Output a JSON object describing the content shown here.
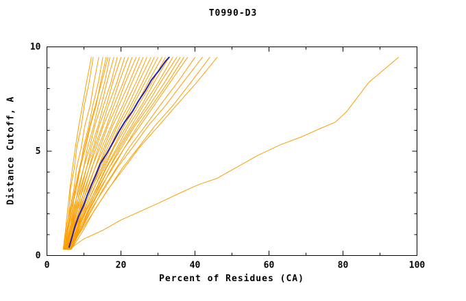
{
  "chart_data": {
    "type": "line",
    "title": "T0990-D3",
    "xlabel": "Percent of Residues (CA)",
    "ylabel": "Distance Cutoff, A",
    "xlim": [
      0,
      100
    ],
    "ylim": [
      0,
      10
    ],
    "x_ticks": [
      0,
      20,
      40,
      60,
      80,
      100
    ],
    "x_minor_ticks": [
      10,
      30,
      50,
      70,
      90
    ],
    "y_ticks": [
      0,
      5,
      10
    ],
    "y_minor_ticks": [
      1,
      2,
      3,
      4,
      6,
      7,
      8,
      9
    ],
    "grid": false,
    "legend": "none",
    "colors": {
      "models": "#ff9d00",
      "highlight": "#2222b2",
      "axis": "#000000",
      "text": "#000000"
    },
    "y_levels": [
      0.3,
      1.2,
      2.2,
      3.2,
      4.2,
      5.2,
      6.2,
      7.2,
      8.3,
      9.5
    ],
    "series_model_xs": [
      [
        4.5,
        5.2,
        6.0,
        6.4,
        7.4,
        8.1,
        9.3,
        10.1,
        11.4,
        12.5
      ],
      [
        4.8,
        5.6,
        6.2,
        7.3,
        8.0,
        9.3,
        10.2,
        11.7,
        12.7,
        14.0
      ],
      [
        5.0,
        5.7,
        6.9,
        7.7,
        9.0,
        9.9,
        11.3,
        12.4,
        13.9,
        15.1
      ],
      [
        4.6,
        5.7,
        6.6,
        8.0,
        9.0,
        10.5,
        11.7,
        13.3,
        14.5,
        16.0
      ],
      [
        5.2,
        6.0,
        7.4,
        8.4,
        9.9,
        11.0,
        12.6,
        13.9,
        15.6,
        17.0
      ],
      [
        4.9,
        6.1,
        7.1,
        8.7,
        9.9,
        11.6,
        12.9,
        14.7,
        16.2,
        18.1
      ],
      [
        5.4,
        6.3,
        7.8,
        9.0,
        10.7,
        12.0,
        13.8,
        15.3,
        17.3,
        19.0
      ],
      [
        5.0,
        6.3,
        7.5,
        9.3,
        10.7,
        12.6,
        14.1,
        16.1,
        17.8,
        20.0
      ],
      [
        5.6,
        6.6,
        8.2,
        9.6,
        11.4,
        12.9,
        14.9,
        16.6,
        18.9,
        21.0
      ],
      [
        5.1,
        6.5,
        7.9,
        9.8,
        11.4,
        13.4,
        15.2,
        17.5,
        19.5,
        22.0
      ],
      [
        5.7,
        6.9,
        8.7,
        10.2,
        12.2,
        13.9,
        16.1,
        18.1,
        20.6,
        23.0
      ],
      [
        5.2,
        6.8,
        8.3,
        10.4,
        12.1,
        14.4,
        16.4,
        18.9,
        21.2,
        24.1
      ],
      [
        5.8,
        7.2,
        9.1,
        10.8,
        13.0,
        14.9,
        17.3,
        19.5,
        22.3,
        25.0
      ],
      [
        5.3,
        7.1,
        8.8,
        11.0,
        13.0,
        15.5,
        17.7,
        20.5,
        23.0,
        26.0
      ],
      [
        5.9,
        7.4,
        9.5,
        11.4,
        13.8,
        15.9,
        18.6,
        21.1,
        24.1,
        27.0
      ],
      [
        5.4,
        7.3,
        9.2,
        11.6,
        13.8,
        16.5,
        19.0,
        22.0,
        24.8,
        28.1
      ],
      [
        6.0,
        7.9,
        9.7,
        12.1,
        14.3,
        17.1,
        19.6,
        22.7,
        25.8,
        29.0
      ],
      [
        5.5,
        7.5,
        9.8,
        12.0,
        14.8,
        17.3,
        20.4,
        23.3,
        26.5,
        30.0
      ],
      [
        6.1,
        8.1,
        10.1,
        12.7,
        15.1,
        18.0,
        20.8,
        24.2,
        27.3,
        31.1
      ],
      [
        5.6,
        7.8,
        10.2,
        12.6,
        15.5,
        18.2,
        21.5,
        24.7,
        28.4,
        32.0
      ],
      [
        6.2,
        8.4,
        10.6,
        13.3,
        15.9,
        19.0,
        22.0,
        25.6,
        29.0,
        33.0
      ],
      [
        5.7,
        8.1,
        10.5,
        13.4,
        16.1,
        19.4,
        22.8,
        26.1,
        30.1,
        34.0
      ],
      [
        6.3,
        8.7,
        11.2,
        13.7,
        16.8,
        19.8,
        23.3,
        27.0,
        30.7,
        35.1
      ],
      [
        5.8,
        8.3,
        10.8,
        13.9,
        16.8,
        20.3,
        23.7,
        27.7,
        31.8,
        36.0
      ],
      [
        6.4,
        9.0,
        11.5,
        14.6,
        17.5,
        21.1,
        24.5,
        28.4,
        32.7,
        37.0
      ],
      [
        5.9,
        8.6,
        11.4,
        14.3,
        17.8,
        21.1,
        25.1,
        29.0,
        33.3,
        38.0
      ],
      [
        6.5,
        9.1,
        12.2,
        15.2,
        18.8,
        22.3,
        26.5,
        30.6,
        35.3,
        40.0
      ],
      [
        6.0,
        9.0,
        11.9,
        15.5,
        19.0,
        23.2,
        27.3,
        32.1,
        36.8,
        42.0
      ],
      [
        6.6,
        9.8,
        12.9,
        16.7,
        20.4,
        24.8,
        29.1,
        34.1,
        38.9,
        44.0
      ],
      [
        6.1,
        9.3,
        13.0,
        16.6,
        20.9,
        25.1,
        30.1,
        35.0,
        40.5,
        46.0
      ],
      [
        4.4,
        5.0,
        5.6,
        6.2,
        6.9,
        7.7,
        8.6,
        9.6,
        10.7,
        12.0
      ],
      [
        4.7,
        5.4,
        6.4,
        7.6,
        8.8,
        10.2,
        11.6,
        13.1,
        14.8,
        16.5
      ]
    ],
    "outlier_series": {
      "name": "outlier-model",
      "points": [
        [
          6,
          0.3
        ],
        [
          10,
          0.8
        ],
        [
          15,
          1.2
        ],
        [
          20,
          1.7
        ],
        [
          25,
          2.1
        ],
        [
          30,
          2.5
        ],
        [
          36,
          3.0
        ],
        [
          41,
          3.4
        ],
        [
          46,
          3.7
        ],
        [
          52,
          4.3
        ],
        [
          57,
          4.8
        ],
        [
          63,
          5.3
        ],
        [
          69,
          5.7
        ],
        [
          74,
          6.1
        ],
        [
          78,
          6.4
        ],
        [
          81,
          6.9
        ],
        [
          84,
          7.6
        ],
        [
          87,
          8.3
        ],
        [
          91,
          8.9
        ],
        [
          95,
          9.5
        ]
      ]
    },
    "highlight_series": {
      "name": "highlighted-model",
      "points": [
        [
          6.0,
          0.4
        ],
        [
          6.8,
          0.9
        ],
        [
          7.6,
          1.4
        ],
        [
          8.6,
          1.9
        ],
        [
          9.9,
          2.4
        ],
        [
          10.9,
          2.9
        ],
        [
          12.1,
          3.4
        ],
        [
          13.3,
          3.9
        ],
        [
          14.4,
          4.4
        ],
        [
          16.2,
          4.9
        ],
        [
          17.8,
          5.4
        ],
        [
          19.3,
          5.9
        ],
        [
          21.0,
          6.4
        ],
        [
          23.1,
          6.9
        ],
        [
          24.7,
          7.4
        ],
        [
          26.6,
          7.9
        ],
        [
          28.2,
          8.4
        ],
        [
          30.4,
          8.9
        ],
        [
          32.0,
          9.3
        ],
        [
          33.0,
          9.5
        ]
      ]
    }
  }
}
